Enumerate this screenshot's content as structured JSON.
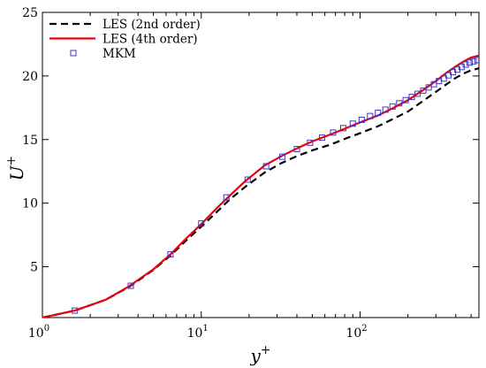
{
  "chart_data": {
    "type": "line",
    "x_scale": "log",
    "xlim": [
      1,
      560
    ],
    "ylim": [
      1,
      25
    ],
    "xlabel_main": "y",
    "xlabel_sup": "+",
    "ylabel_main": "U",
    "ylabel_sup": "+",
    "x_ticks": [
      {
        "value": 1,
        "base": "10",
        "exp": "0"
      },
      {
        "value": 10,
        "base": "10",
        "exp": "1"
      },
      {
        "value": 100,
        "base": "10",
        "exp": "2"
      }
    ],
    "y_ticks": [
      5,
      10,
      15,
      20,
      25
    ],
    "legend_position": "top-left",
    "series": [
      {
        "name": "LES (2nd order)",
        "style": "dashed",
        "color": "#000000",
        "x": [
          1,
          1.6,
          2.5,
          3.5,
          5,
          6.5,
          8,
          10,
          12.5,
          15,
          19,
          25,
          32,
          40,
          50,
          65,
          80,
          100,
          130,
          160,
          200,
          250,
          300,
          350,
          400,
          450,
          500,
          560
        ],
        "y": [
          1.0,
          1.55,
          2.4,
          3.4,
          4.75,
          5.95,
          7.05,
          8.15,
          9.3,
          10.25,
          11.3,
          12.4,
          13.15,
          13.7,
          14.15,
          14.6,
          15.05,
          15.5,
          16.05,
          16.6,
          17.2,
          18.05,
          18.75,
          19.35,
          19.85,
          20.2,
          20.45,
          20.6
        ]
      },
      {
        "name": "LES (4th order)",
        "style": "solid",
        "color": "#e8000b",
        "x": [
          1,
          1.6,
          2.5,
          3.5,
          5,
          6.5,
          8,
          10,
          12.5,
          15,
          19,
          25,
          32,
          40,
          50,
          65,
          80,
          100,
          130,
          160,
          200,
          250,
          300,
          350,
          400,
          450,
          500,
          560
        ],
        "y": [
          1.0,
          1.55,
          2.4,
          3.45,
          4.8,
          6.05,
          7.2,
          8.35,
          9.6,
          10.55,
          11.75,
          12.95,
          13.7,
          14.3,
          14.85,
          15.4,
          15.85,
          16.35,
          16.9,
          17.45,
          18.1,
          18.9,
          19.6,
          20.25,
          20.75,
          21.15,
          21.45,
          21.6
        ]
      },
      {
        "name": "MKM",
        "style": "markers",
        "marker": "square",
        "color": "#3a38c8",
        "x": [
          1.6,
          3.6,
          6.4,
          10,
          14.4,
          19.6,
          25.6,
          32.4,
          40,
          48.4,
          57.6,
          67.6,
          78.4,
          90,
          102.4,
          115.6,
          129.6,
          144.4,
          160,
          176.4,
          193.6,
          211.6,
          230.4,
          250,
          270.4,
          291.6,
          313.6,
          336.4,
          360,
          384.4,
          409.6,
          435.6,
          462.4,
          490,
          518.4,
          547.6
        ],
        "y": [
          1.55,
          3.5,
          5.97,
          8.4,
          10.45,
          11.85,
          12.9,
          13.65,
          14.25,
          14.75,
          15.15,
          15.55,
          15.9,
          16.25,
          16.55,
          16.85,
          17.1,
          17.35,
          17.6,
          17.85,
          18.1,
          18.35,
          18.6,
          18.85,
          19.1,
          19.35,
          19.6,
          19.8,
          20.05,
          20.3,
          20.5,
          20.7,
          20.9,
          21.05,
          21.15,
          21.25
        ]
      }
    ]
  }
}
